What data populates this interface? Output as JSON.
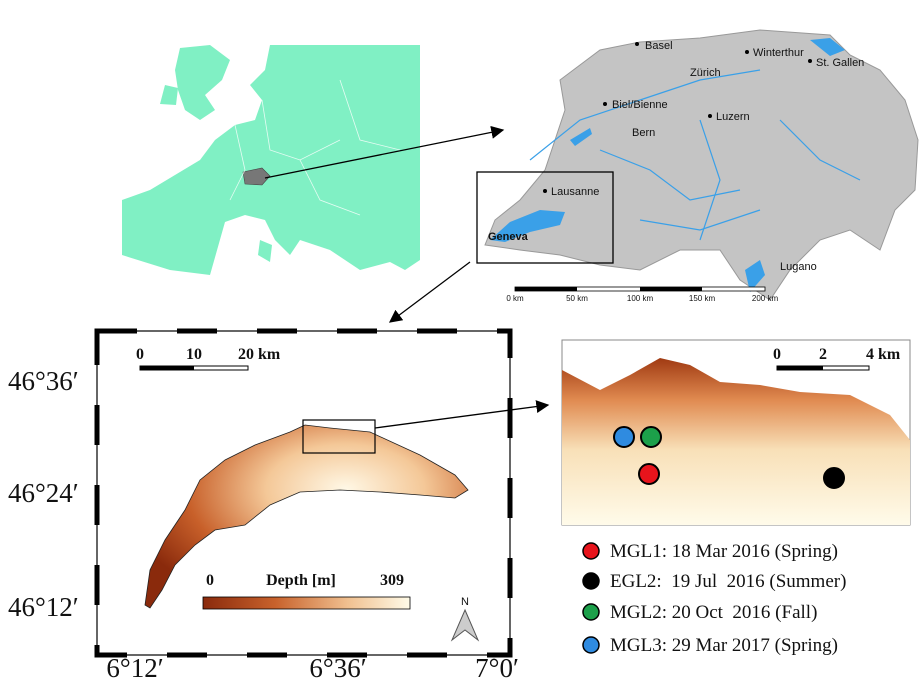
{
  "switzerland_map": {
    "cities": [
      "Basel",
      "Winterthur",
      "St. Gallen",
      "Zürich",
      "Biel/Bienne",
      "Luzern",
      "Bern",
      "Lausanne",
      "Geneva",
      "Lugano"
    ],
    "scale_labels": [
      "0 km",
      "50 km",
      "100 km",
      "150 km",
      "200 km"
    ]
  },
  "lake_map": {
    "scale_labels": [
      "0",
      "10",
      "20 km"
    ],
    "lat_labels": [
      "46°36′",
      "46°24′",
      "46°12′"
    ],
    "lon_labels": [
      "6°12′",
      "6°36′",
      "7°0′"
    ],
    "colorbar": {
      "min_label": "0",
      "title": "Depth [m]",
      "max_label": "309"
    },
    "north": "N"
  },
  "inset_map": {
    "scale_labels": [
      "0",
      "2",
      "4 km"
    ]
  },
  "legend": [
    {
      "label": "MGL1: 18 Mar 2016 (Spring)",
      "color": "#e8141c"
    },
    {
      "label": "EGL2:  19 Jul  2016 (Summer)",
      "color": "#000000"
    },
    {
      "label": "MGL2: 20 Oct  2016 (Fall)",
      "color": "#1ca04a"
    },
    {
      "label": "MGL3: 29 Mar 2017 (Spring)",
      "color": "#2f8be0"
    }
  ]
}
